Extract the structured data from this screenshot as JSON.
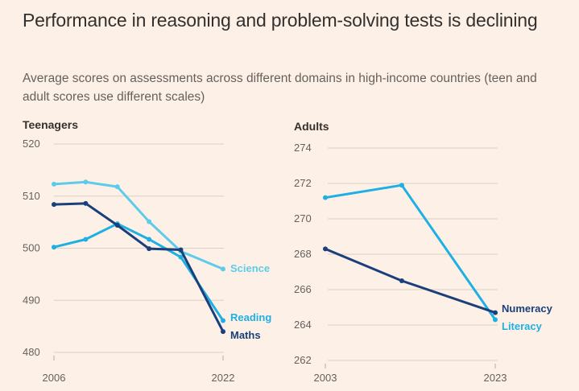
{
  "title": "Performance in reasoning and problem-solving tests is declining",
  "subtitle": "Average scores on assessments across different domains in high-income countries (teen and adult scores use different scales)",
  "colors": {
    "background": "#fdf1e7",
    "science": "#5ecbea",
    "reading": "#1fb0e3",
    "maths": "#1a3f7a",
    "numeracy": "#1a3f7a",
    "literacy": "#1fb0e3"
  },
  "chart_data": [
    {
      "type": "line",
      "title": "Teenagers",
      "x": [
        2006,
        2009,
        2012,
        2015,
        2018,
        2022
      ],
      "xticks": [
        "2006",
        "2022"
      ],
      "yticks": [
        "520",
        "510",
        "500",
        "490",
        "480"
      ],
      "ylim": [
        480,
        520
      ],
      "grid": true,
      "series": [
        {
          "name": "Science",
          "values": [
            512.3,
            512.7,
            511.8,
            505.1,
            499.4,
            496.0
          ]
        },
        {
          "name": "Reading",
          "values": [
            500.2,
            501.7,
            504.7,
            501.7,
            498.3,
            486.1
          ]
        },
        {
          "name": "Maths",
          "values": [
            508.4,
            508.6,
            504.4,
            499.9,
            499.7,
            484.0
          ]
        }
      ]
    },
    {
      "type": "line",
      "title": "Adults",
      "x": [
        2003,
        2012,
        2023
      ],
      "xticks": [
        "2003",
        "2023"
      ],
      "yticks": [
        "274",
        "272",
        "270",
        "268",
        "266",
        "264",
        "262"
      ],
      "ylim": [
        262,
        274
      ],
      "grid": true,
      "series": [
        {
          "name": "Literacy",
          "values": [
            271.2,
            271.9,
            264.3
          ]
        },
        {
          "name": "Numeracy",
          "values": [
            268.3,
            266.5,
            264.7
          ]
        }
      ]
    }
  ]
}
